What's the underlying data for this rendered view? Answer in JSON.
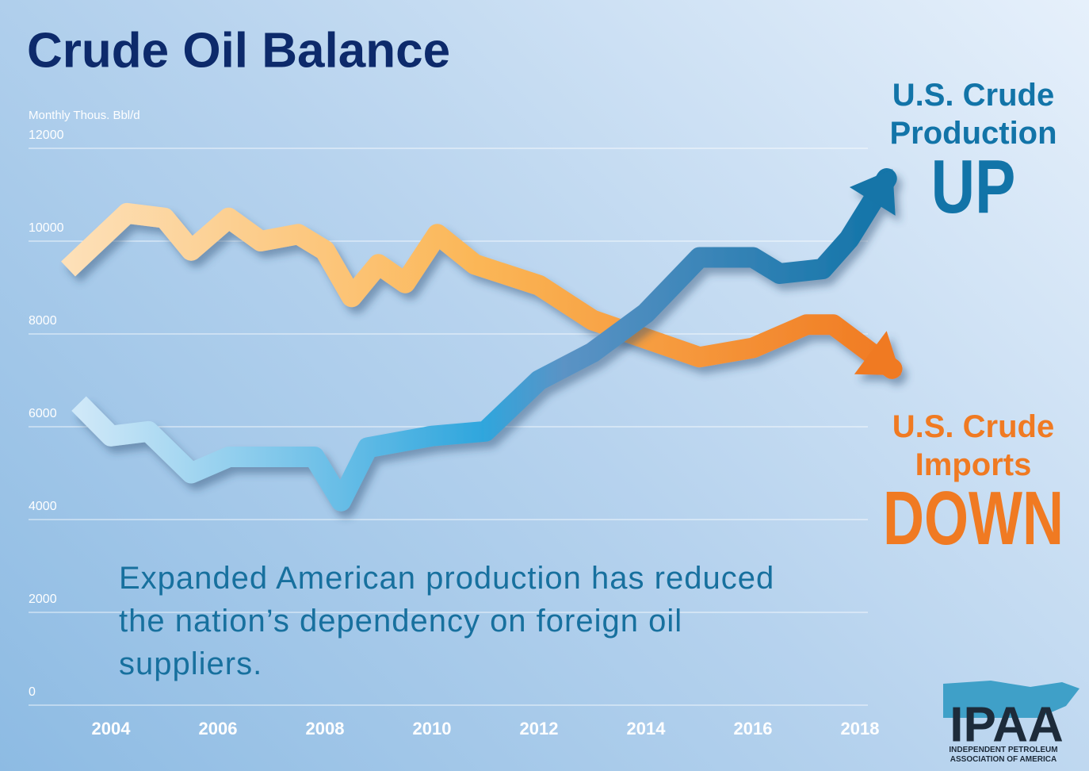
{
  "chart_data": {
    "type": "line",
    "title": "Crude Oil Balance",
    "y_label": "Monthly Thous. Bbl/d",
    "xlim": [
      2003,
      2019
    ],
    "xticks": [
      2004,
      2006,
      2008,
      2010,
      2012,
      2014,
      2016,
      2018
    ],
    "ylim": [
      0,
      12000
    ],
    "yticks": [
      0,
      2000,
      4000,
      6000,
      8000,
      10000,
      12000
    ],
    "grid": true,
    "series": [
      {
        "name": "U.S. Crude Imports",
        "color": "#f07a22",
        "x": [
          2003.2,
          2004.3,
          2005,
          2005.5,
          2006.2,
          2006.8,
          2007.5,
          2008,
          2008.5,
          2009,
          2009.5,
          2010.1,
          2010.8,
          2012,
          2013,
          2014,
          2015,
          2016,
          2017,
          2017.5,
          2018.6
        ],
        "values": [
          9400,
          10600,
          10500,
          9800,
          10500,
          10000,
          10150,
          9800,
          8800,
          9500,
          9100,
          10150,
          9500,
          9050,
          8300,
          7900,
          7500,
          7700,
          8200,
          8200,
          7250
        ]
      },
      {
        "name": "U.S. Crude Production",
        "color": "#1274a8",
        "x": [
          2003.4,
          2004,
          2004.7,
          2005.5,
          2006.2,
          2007,
          2007.8,
          2008.3,
          2008.8,
          2010,
          2011,
          2012,
          2013,
          2014,
          2015,
          2016,
          2016.5,
          2017.3,
          2017.8,
          2018.5
        ],
        "values": [
          6500,
          5800,
          5900,
          5000,
          5350,
          5350,
          5350,
          4400,
          5550,
          5800,
          5900,
          7000,
          7600,
          8450,
          9650,
          9650,
          9300,
          9400,
          10050,
          11350
        ]
      }
    ],
    "annotations": [
      "UP",
      "DOWN",
      "Expanded American production has reduced the nation’s dependency on foreign oil suppliers."
    ],
    "logo": {
      "name": "IPAA",
      "subtitle": "INDEPENDENT PETROLEUM ASSOCIATION OF AMERICA"
    }
  }
}
